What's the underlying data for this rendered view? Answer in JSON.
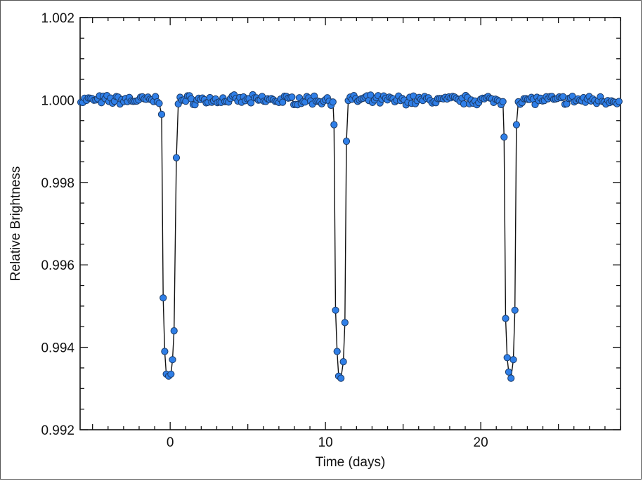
{
  "chart_data": {
    "type": "line",
    "xlabel": "Time (days)",
    "ylabel": "Relative Brightness",
    "xlim": [
      -5.8,
      29.0
    ],
    "ylim": [
      0.992,
      1.002
    ],
    "x_ticks": [
      0,
      10,
      20
    ],
    "x_tick_labels": [
      "0",
      "10",
      "20"
    ],
    "y_ticks": [
      0.992,
      0.994,
      0.996,
      0.998,
      1.0,
      1.002
    ],
    "y_tick_labels": [
      "0.992",
      "0.994",
      "0.996",
      "0.998",
      "1.000",
      "1.002"
    ],
    "grid": false,
    "marker_color": "#2f7fe8",
    "marker_edge_color": "#1b3a66",
    "line_color": "#111111",
    "baseline": 1.0,
    "transits": [
      {
        "points": [
          [
            -0.55,
            0.99965
          ],
          [
            -0.45,
            0.9952
          ],
          [
            -0.35,
            0.9939
          ],
          [
            -0.25,
            0.99335
          ],
          [
            -0.1,
            0.9933
          ],
          [
            0.05,
            0.99335
          ],
          [
            0.15,
            0.9937
          ],
          [
            0.25,
            0.9944
          ],
          [
            0.4,
            0.9986
          ]
        ]
      },
      {
        "points": [
          [
            10.55,
            0.9994
          ],
          [
            10.65,
            0.9949
          ],
          [
            10.75,
            0.9939
          ],
          [
            10.85,
            0.9933
          ],
          [
            11.0,
            0.99325
          ],
          [
            11.15,
            0.99365
          ],
          [
            11.25,
            0.9946
          ],
          [
            11.35,
            0.999
          ]
        ]
      },
      {
        "points": [
          [
            21.5,
            0.9991
          ],
          [
            21.6,
            0.9947
          ],
          [
            21.7,
            0.99375
          ],
          [
            21.8,
            0.9934
          ],
          [
            21.95,
            0.99325
          ],
          [
            22.1,
            0.9937
          ],
          [
            22.2,
            0.9949
          ],
          [
            22.3,
            0.9994
          ]
        ]
      }
    ]
  }
}
